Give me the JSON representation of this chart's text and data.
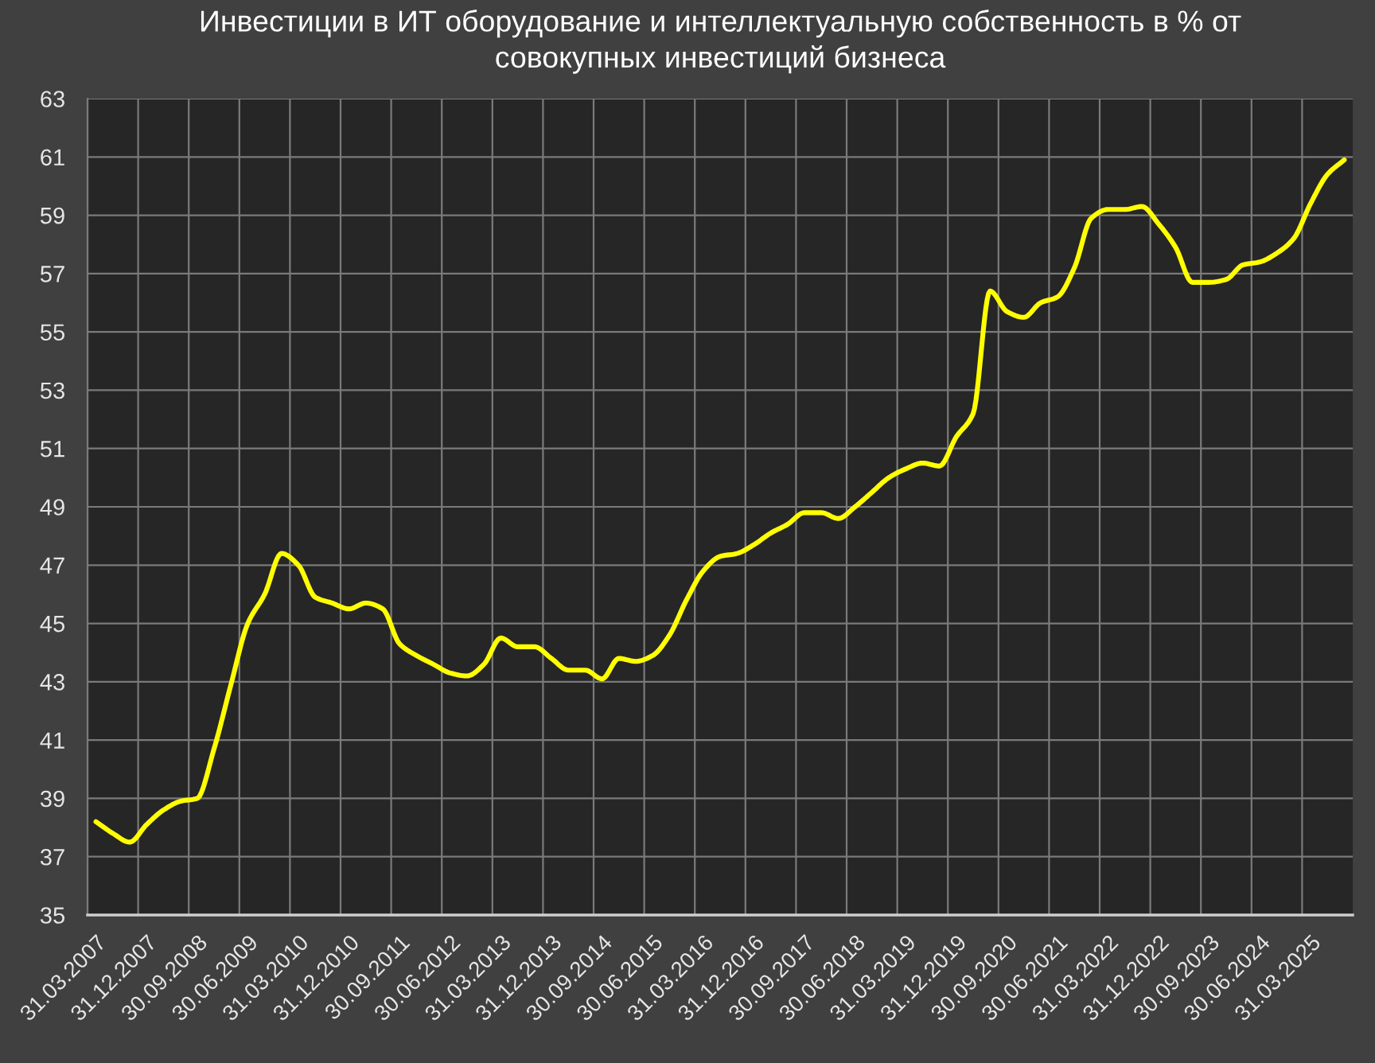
{
  "chart_data": {
    "type": "line",
    "title": "Инвестиции в ИТ оборудование и интеллектуальную собственность в % от\nсовокупных инвестиций бизнеса",
    "categories": [
      "31.03.2007",
      null,
      null,
      "31.12.2007",
      null,
      null,
      "30.09.2008",
      null,
      null,
      "30.06.2009",
      null,
      null,
      "31.03.2010",
      null,
      null,
      "31.12.2010",
      null,
      null,
      "30.09.2011",
      null,
      null,
      "30.06.2012",
      null,
      null,
      "31.03.2013",
      null,
      null,
      "31.12.2013",
      null,
      null,
      "30.09.2014",
      null,
      null,
      "30.06.2015",
      null,
      null,
      "31.03.2016",
      null,
      null,
      "31.12.2016",
      null,
      null,
      "30.09.2017",
      null,
      null,
      "30.06.2018",
      null,
      null,
      "31.03.2019",
      null,
      null,
      "31.12.2019",
      null,
      null,
      "30.09.2020",
      null,
      null,
      "30.06.2021",
      null,
      null,
      "31.03.2022",
      null,
      null,
      "31.12.2022",
      null,
      null,
      "30.09.2023",
      null,
      null,
      "30.06.2024",
      null,
      null,
      "31.03.2025",
      null,
      null
    ],
    "series": [
      {
        "color": "#ffff00",
        "values": [
          38.2,
          37.8,
          37.5,
          38.1,
          38.6,
          38.9,
          39.0,
          40.7,
          42.9,
          45.0,
          46.0,
          47.4,
          47.0,
          45.9,
          45.7,
          45.5,
          45.7,
          45.5,
          44.3,
          43.9,
          43.6,
          43.3,
          43.2,
          43.6,
          44.5,
          44.2,
          44.2,
          43.8,
          43.4,
          43.4,
          43.1,
          43.8,
          43.7,
          43.9,
          44.6,
          45.8,
          46.8,
          47.3,
          47.4,
          47.7,
          48.1,
          48.4,
          48.8,
          48.8,
          48.6,
          49.0,
          49.5,
          50.0,
          50.3,
          50.5,
          50.4,
          51.4,
          52.2,
          56.4,
          55.7,
          55.5,
          56.0,
          56.2,
          57.2,
          58.9,
          59.2,
          59.2,
          59.3,
          58.7,
          57.9,
          56.7,
          56.7,
          56.8,
          57.3,
          57.4,
          57.7,
          58.2,
          59.4,
          60.4,
          60.9
        ]
      }
    ],
    "ylim": [
      35,
      63
    ],
    "yticks": [
      35,
      37,
      39,
      41,
      43,
      45,
      47,
      49,
      51,
      53,
      55,
      57,
      59,
      61,
      63
    ],
    "grid": true,
    "line_style": "solid"
  }
}
